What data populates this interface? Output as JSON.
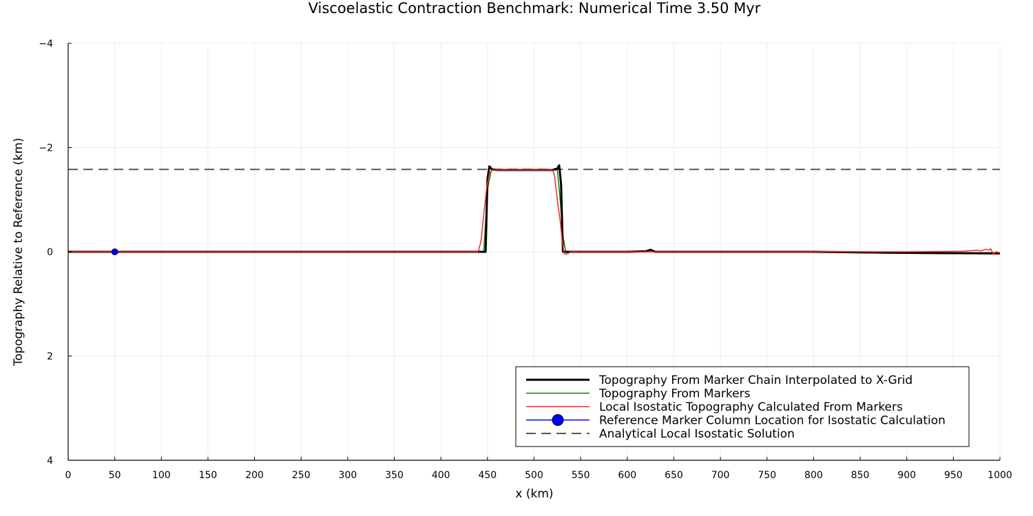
{
  "chart_data": {
    "type": "line",
    "title": "Viscoelastic Contraction Benchmark: Numerical Time 3.50 Myr",
    "xlabel": "x (km)",
    "ylabel": "Topography Relative to Reference (km)",
    "xlim": [
      0,
      1000
    ],
    "ylim": [
      -4,
      4
    ],
    "y_inverted": true,
    "grid": true,
    "legend_position": "bottom-right",
    "xticks": [
      0,
      50,
      100,
      150,
      200,
      250,
      300,
      350,
      400,
      450,
      500,
      550,
      600,
      650,
      700,
      750,
      800,
      850,
      900,
      950,
      1000
    ],
    "yticks": [
      -4,
      -2,
      0,
      2,
      4
    ],
    "ytick_labels": [
      "−4",
      "−2",
      "0",
      "2",
      "4"
    ],
    "series": [
      {
        "name": "Topography From Marker Chain Interpolated to X-Grid",
        "color": "#000000",
        "width": 3,
        "style": "solid",
        "x": [
          0,
          100,
          200,
          300,
          400,
          448,
          450,
          452,
          455,
          460,
          500,
          520,
          525,
          527,
          529,
          531,
          540,
          600,
          620,
          625,
          630,
          700,
          800,
          900,
          1000
        ],
        "y": [
          0,
          0,
          0,
          0,
          0,
          0,
          -1.4,
          -1.64,
          -1.58,
          -1.57,
          -1.57,
          -1.57,
          -1.6,
          -1.66,
          -1.3,
          0,
          0,
          0,
          -0.01,
          -0.04,
          0,
          0,
          0,
          0.02,
          0.03
        ]
      },
      {
        "name": "Topography From Markers",
        "color": "#008000",
        "width": 1.5,
        "style": "solid",
        "x": [
          0,
          100,
          200,
          300,
          400,
          446,
          450,
          454,
          458,
          500,
          525,
          528,
          531,
          534,
          540,
          600,
          700,
          800,
          900,
          1000
        ],
        "y": [
          0,
          0,
          0,
          0,
          0,
          0,
          -1.2,
          -1.56,
          -1.57,
          -1.57,
          -1.57,
          -1.0,
          -0.3,
          0,
          0,
          0,
          0,
          0.01,
          0.03,
          0.04
        ]
      },
      {
        "name": "Local Isostatic Topography Calculated From Markers",
        "color": "#ff2020",
        "width": 1.5,
        "style": "solid",
        "x": [
          0,
          100,
          200,
          300,
          400,
          440,
          443,
          446,
          449,
          452,
          455,
          500,
          520,
          522,
          525,
          528,
          530,
          532,
          534,
          540,
          600,
          700,
          800,
          900,
          960,
          975,
          980,
          985,
          988,
          990,
          993,
          996,
          1000
        ],
        "y": [
          0,
          0,
          0,
          0,
          0,
          0,
          -0.2,
          -0.7,
          -1.2,
          -1.5,
          -1.57,
          -1.57,
          -1.57,
          -1.45,
          -1.0,
          -0.6,
          -0.25,
          0.02,
          0.05,
          0,
          0,
          0,
          0,
          0,
          -0.01,
          -0.03,
          -0.02,
          -0.05,
          -0.03,
          -0.06,
          0.05,
          0.0,
          0.02
        ]
      },
      {
        "name": "Reference Marker Column Location for Isostatic Calculation",
        "color": "#0000ff",
        "style": "marker",
        "x": [
          50
        ],
        "y": [
          0
        ]
      },
      {
        "name": "Analytical Local Isostatic Solution",
        "color": "#555555",
        "width": 2,
        "style": "dashed",
        "x": [
          0,
          1000
        ],
        "y": [
          -1.58,
          -1.58
        ]
      }
    ]
  }
}
